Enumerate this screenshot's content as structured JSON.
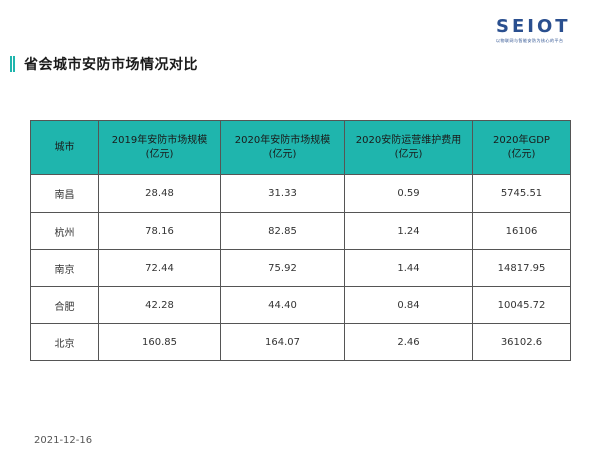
{
  "title": "省会城市安防市场情况对比",
  "logo": {
    "text": "SEIOT",
    "sub": "以物联网与智能安防为核心的平台"
  },
  "table": {
    "headers": [
      {
        "line1": "城市",
        "line2": ""
      },
      {
        "line1": "2019年安防市场规模",
        "line2": "(亿元)"
      },
      {
        "line1": "2020年安防市场规模",
        "line2": "(亿元)"
      },
      {
        "line1": "2020安防运营维护费用",
        "line2": "(亿元)"
      },
      {
        "line1": "2020年GDP",
        "line2": "(亿元)"
      }
    ],
    "rows": [
      [
        "南昌",
        "28.48",
        "31.33",
        "0.59",
        "5745.51"
      ],
      [
        "杭州",
        "78.16",
        "82.85",
        "1.24",
        "16106"
      ],
      [
        "南京",
        "72.44",
        "75.92",
        "1.44",
        "14817.95"
      ],
      [
        "合肥",
        "42.28",
        "44.40",
        "0.84",
        "10045.72"
      ],
      [
        "北京",
        "160.85",
        "164.07",
        "2.46",
        "36102.6"
      ]
    ]
  },
  "date": "2021-12-16",
  "colors": {
    "accent": "#1fb5ad",
    "logo": "#2a4f8f"
  }
}
